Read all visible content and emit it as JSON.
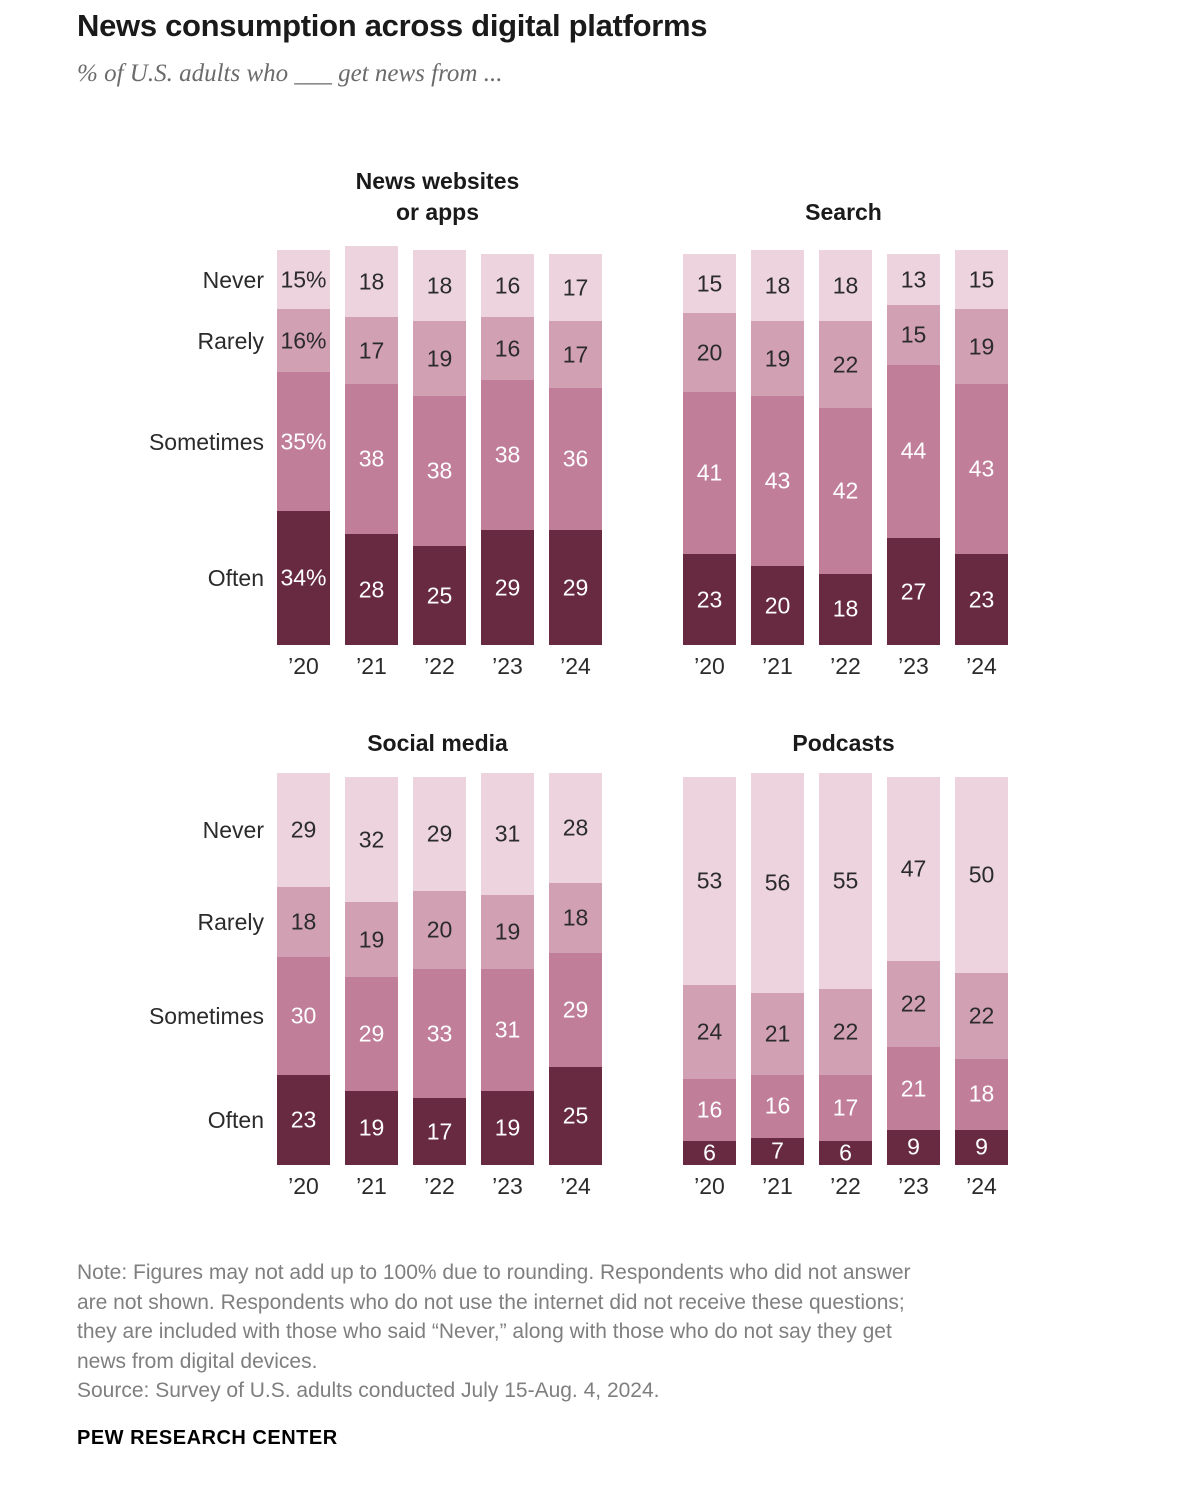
{
  "header": {
    "title": "News consumption across digital platforms",
    "subtitle": "% of U.S. adults who ___ get news from ..."
  },
  "colors": {
    "never": "#ecd3dd",
    "rarely": "#d2a0b3",
    "sometimes": "#c07e98",
    "often": "#682a41",
    "label_dark": "#2b2b2b",
    "label_light": "#ffffff"
  },
  "chart_data": [
    {
      "type": "bar",
      "stacked": true,
      "title": "News websites or apps",
      "title_lines": [
        "News websites",
        "or apps"
      ],
      "categories": [
        "’20",
        "’21",
        "’22",
        "’23",
        "’24"
      ],
      "first_category_percent": true,
      "show_row_labels": true,
      "series": [
        {
          "name": "Never",
          "color": "#ecd3dd",
          "label_color": "#2b2b2b",
          "values": [
            15,
            18,
            18,
            16,
            17
          ]
        },
        {
          "name": "Rarely",
          "color": "#d2a0b3",
          "label_color": "#2b2b2b",
          "values": [
            16,
            17,
            19,
            16,
            17
          ]
        },
        {
          "name": "Sometimes",
          "color": "#c07e98",
          "label_color": "#ffffff",
          "values": [
            35,
            38,
            38,
            38,
            36
          ]
        },
        {
          "name": "Often",
          "color": "#682a41",
          "label_color": "#ffffff",
          "values": [
            34,
            28,
            25,
            29,
            29
          ]
        }
      ]
    },
    {
      "type": "bar",
      "stacked": true,
      "title": "Search",
      "title_lines": [
        "Search"
      ],
      "categories": [
        "’20",
        "’21",
        "’22",
        "’23",
        "’24"
      ],
      "first_category_percent": false,
      "show_row_labels": false,
      "series": [
        {
          "name": "Never",
          "color": "#ecd3dd",
          "label_color": "#2b2b2b",
          "values": [
            15,
            18,
            18,
            13,
            15
          ]
        },
        {
          "name": "Rarely",
          "color": "#d2a0b3",
          "label_color": "#2b2b2b",
          "values": [
            20,
            19,
            22,
            15,
            19
          ]
        },
        {
          "name": "Sometimes",
          "color": "#c07e98",
          "label_color": "#ffffff",
          "values": [
            41,
            43,
            42,
            44,
            43
          ]
        },
        {
          "name": "Often",
          "color": "#682a41",
          "label_color": "#ffffff",
          "values": [
            23,
            20,
            18,
            27,
            23
          ]
        }
      ]
    },
    {
      "type": "bar",
      "stacked": true,
      "title": "Social media",
      "title_lines": [
        "Social media"
      ],
      "categories": [
        "’20",
        "’21",
        "’22",
        "’23",
        "’24"
      ],
      "first_category_percent": false,
      "show_row_labels": true,
      "series": [
        {
          "name": "Never",
          "color": "#ecd3dd",
          "label_color": "#2b2b2b",
          "values": [
            29,
            32,
            29,
            31,
            28
          ]
        },
        {
          "name": "Rarely",
          "color": "#d2a0b3",
          "label_color": "#2b2b2b",
          "values": [
            18,
            19,
            20,
            19,
            18
          ]
        },
        {
          "name": "Sometimes",
          "color": "#c07e98",
          "label_color": "#ffffff",
          "values": [
            30,
            29,
            33,
            31,
            29
          ]
        },
        {
          "name": "Often",
          "color": "#682a41",
          "label_color": "#ffffff",
          "values": [
            23,
            19,
            17,
            19,
            25
          ]
        }
      ]
    },
    {
      "type": "bar",
      "stacked": true,
      "title": "Podcasts",
      "title_lines": [
        "Podcasts"
      ],
      "categories": [
        "’20",
        "’21",
        "’22",
        "’23",
        "’24"
      ],
      "first_category_percent": false,
      "show_row_labels": false,
      "series": [
        {
          "name": "Never",
          "color": "#ecd3dd",
          "label_color": "#2b2b2b",
          "values": [
            53,
            56,
            55,
            47,
            50
          ]
        },
        {
          "name": "Rarely",
          "color": "#d2a0b3",
          "label_color": "#2b2b2b",
          "values": [
            24,
            21,
            22,
            22,
            22
          ]
        },
        {
          "name": "Sometimes",
          "color": "#c07e98",
          "label_color": "#ffffff",
          "values": [
            16,
            16,
            17,
            21,
            18
          ]
        },
        {
          "name": "Often",
          "color": "#682a41",
          "label_color": "#ffffff",
          "values": [
            6,
            7,
            6,
            9,
            9
          ]
        }
      ]
    }
  ],
  "note": {
    "lines": [
      "Note: Figures may not add up to 100% due to rounding. Respondents who did not answer",
      "are not shown. Respondents who do not use the internet did not receive these questions;",
      "they are included with those who said “Never,” along with those who do not say they get",
      "news from digital devices."
    ],
    "source": "Source: Survey of U.S. adults conducted July 15-Aug. 4, 2024."
  },
  "branding": "PEW RESEARCH CENTER"
}
